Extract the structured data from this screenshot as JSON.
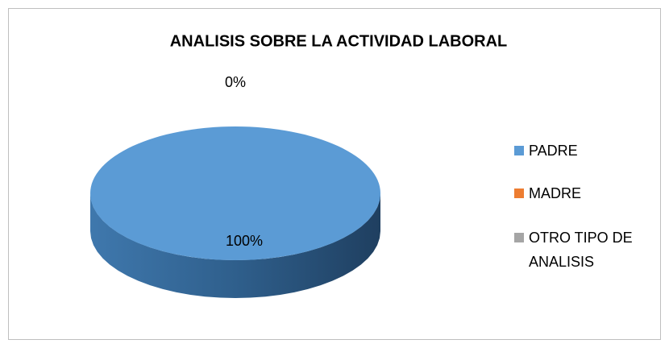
{
  "chart_data": {
    "type": "pie",
    "title": "ANALISIS SOBRE LA ACTIVIDAD LABORAL",
    "categories": [
      "PADRE",
      "MADRE",
      "OTRO TIPO DE ANALISIS"
    ],
    "values": [
      100,
      0,
      0
    ],
    "value_labels": [
      "100%",
      "0%",
      null
    ],
    "colors": [
      "#5b9bd5",
      "#ed7d31",
      "#a5a5a5"
    ],
    "legend": "right"
  }
}
